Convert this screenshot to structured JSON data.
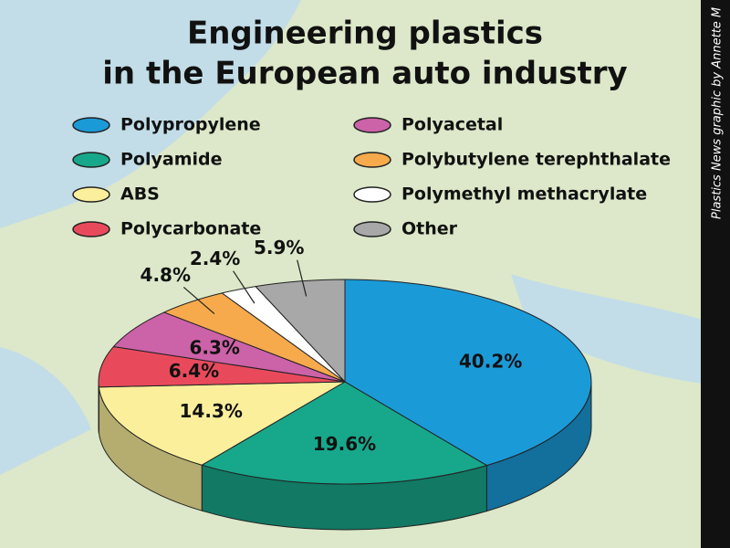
{
  "credit": "Plastics News graphic by Annette M",
  "chart_data": {
    "type": "pie",
    "title": [
      "Engineering plastics",
      "in the European auto industry"
    ],
    "categories": [
      "Polypropylene",
      "Polyamide",
      "ABS",
      "Polycarbonate",
      "Polyacetal",
      "Polybutylene terephthalate",
      "Polymethyl methacrylate",
      "Other"
    ],
    "values": [
      40.2,
      19.6,
      14.3,
      6.4,
      6.3,
      4.8,
      2.4,
      5.9
    ],
    "value_labels": [
      "40.2%",
      "19.6%",
      "14.3%",
      "6.4%",
      "6.3%",
      "4.8%",
      "2.4%",
      "5.9%"
    ],
    "colors": [
      "#1b9ad8",
      "#17a88b",
      "#fbef9c",
      "#e84a5c",
      "#cc62a8",
      "#f6aa4c",
      "#ffffff",
      "#a8a8a8"
    ]
  }
}
